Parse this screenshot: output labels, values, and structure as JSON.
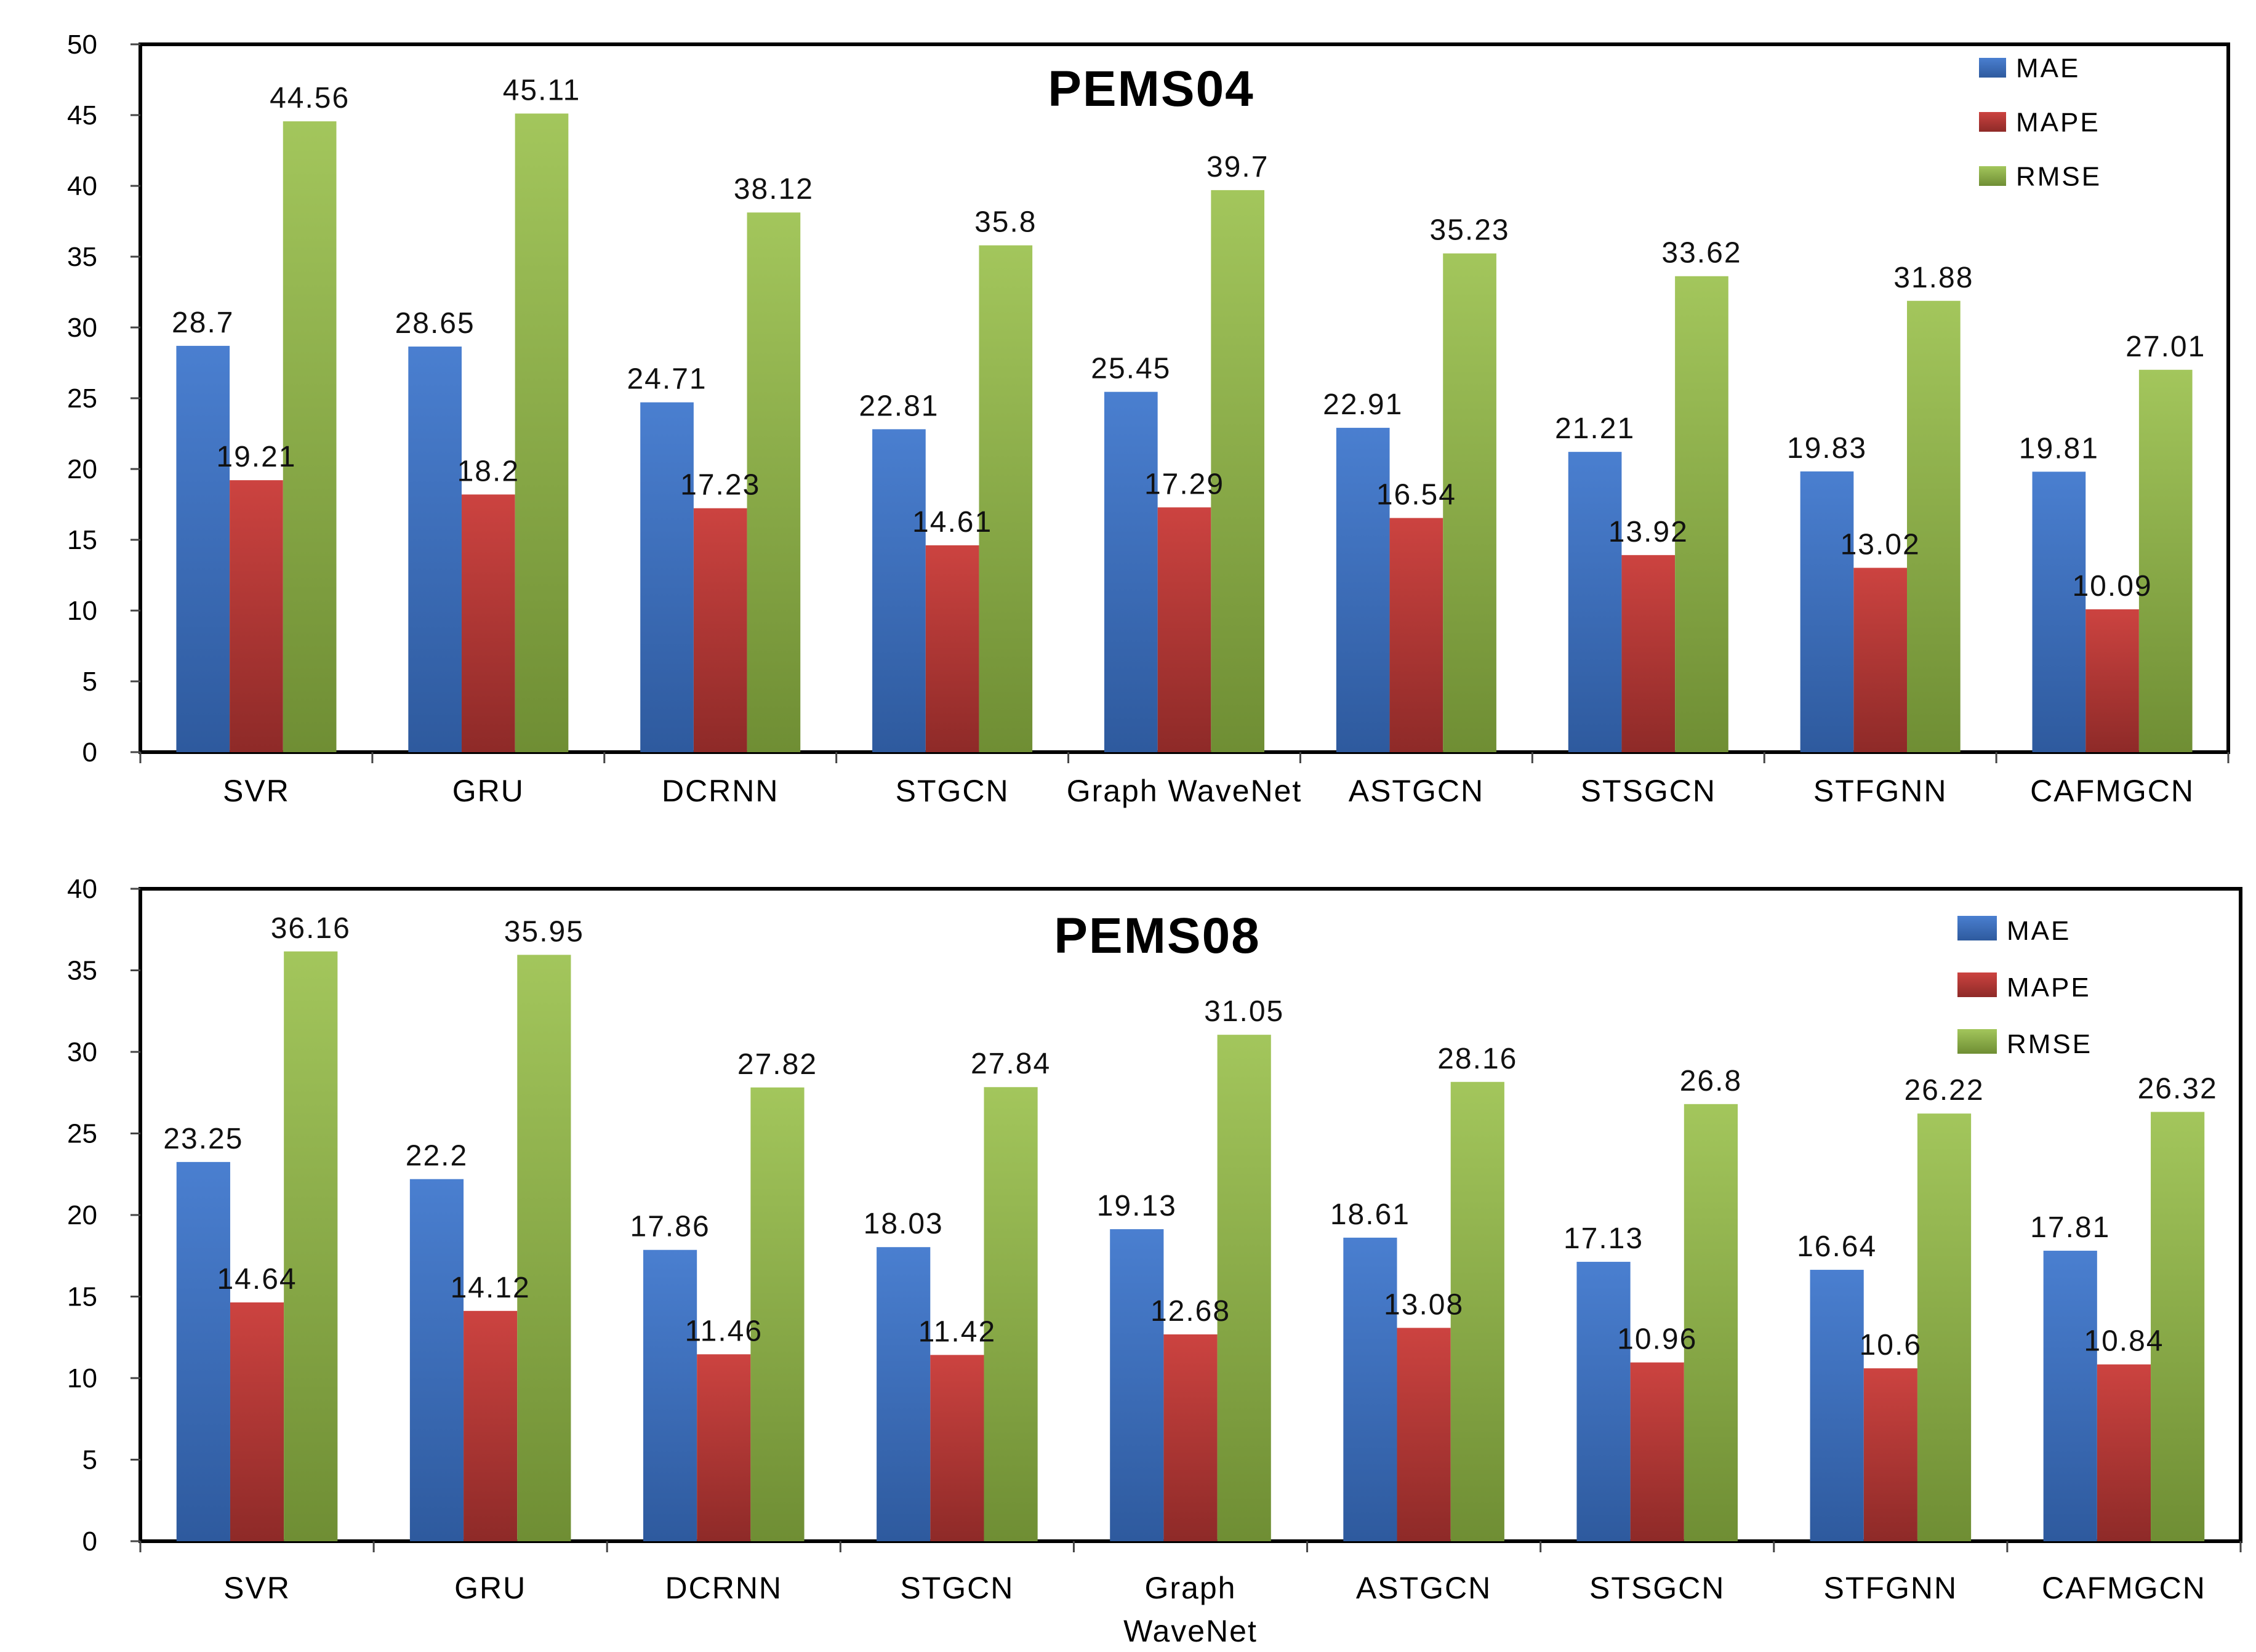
{
  "colors": {
    "MAE": "#4472C4",
    "MAPE": "#C0403C",
    "RMSE": "#9BBB59",
    "frame": "#000000"
  },
  "chart_data": [
    {
      "type": "bar",
      "title": "PEMS04",
      "categories": [
        "SVR",
        "GRU",
        "DCRNN",
        "STGCN",
        "Graph WaveNet",
        "ASTGCN",
        "STSGCN",
        "STFGNN",
        "CAFMGCN"
      ],
      "series": [
        {
          "name": "MAE",
          "values": [
            28.7,
            28.65,
            24.71,
            22.81,
            25.45,
            22.91,
            21.21,
            19.83,
            19.81
          ]
        },
        {
          "name": "MAPE",
          "values": [
            19.21,
            18.2,
            17.23,
            14.61,
            17.29,
            16.54,
            13.92,
            13.02,
            10.09
          ]
        },
        {
          "name": "RMSE",
          "values": [
            44.56,
            45.11,
            38.12,
            35.8,
            39.7,
            35.23,
            33.62,
            31.88,
            27.01
          ]
        }
      ],
      "ylim": [
        0,
        50
      ],
      "yticks": [
        0,
        5,
        10,
        15,
        20,
        25,
        30,
        35,
        40,
        45,
        50
      ],
      "legend": "top-right",
      "xlabel": "",
      "ylabel": ""
    },
    {
      "type": "bar",
      "title": "PEMS08",
      "categories": [
        "SVR",
        "GRU",
        "DCRNN",
        "STGCN",
        "Graph WaveNet",
        "ASTGCN",
        "STSGCN",
        "STFGNN",
        "CAFMGCN"
      ],
      "series": [
        {
          "name": "MAE",
          "values": [
            23.25,
            22.2,
            17.86,
            18.03,
            19.13,
            18.61,
            17.13,
            16.64,
            17.81
          ]
        },
        {
          "name": "MAPE",
          "values": [
            14.64,
            14.12,
            11.46,
            11.42,
            12.68,
            13.08,
            10.96,
            10.6,
            10.84
          ]
        },
        {
          "name": "RMSE",
          "values": [
            36.16,
            35.95,
            27.82,
            27.84,
            31.05,
            28.16,
            26.8,
            26.22,
            26.32
          ]
        }
      ],
      "ylim": [
        0,
        40
      ],
      "yticks": [
        0,
        5,
        10,
        15,
        20,
        25,
        30,
        35,
        40
      ],
      "legend": "top-right",
      "xlabel": "",
      "ylabel": ""
    }
  ]
}
